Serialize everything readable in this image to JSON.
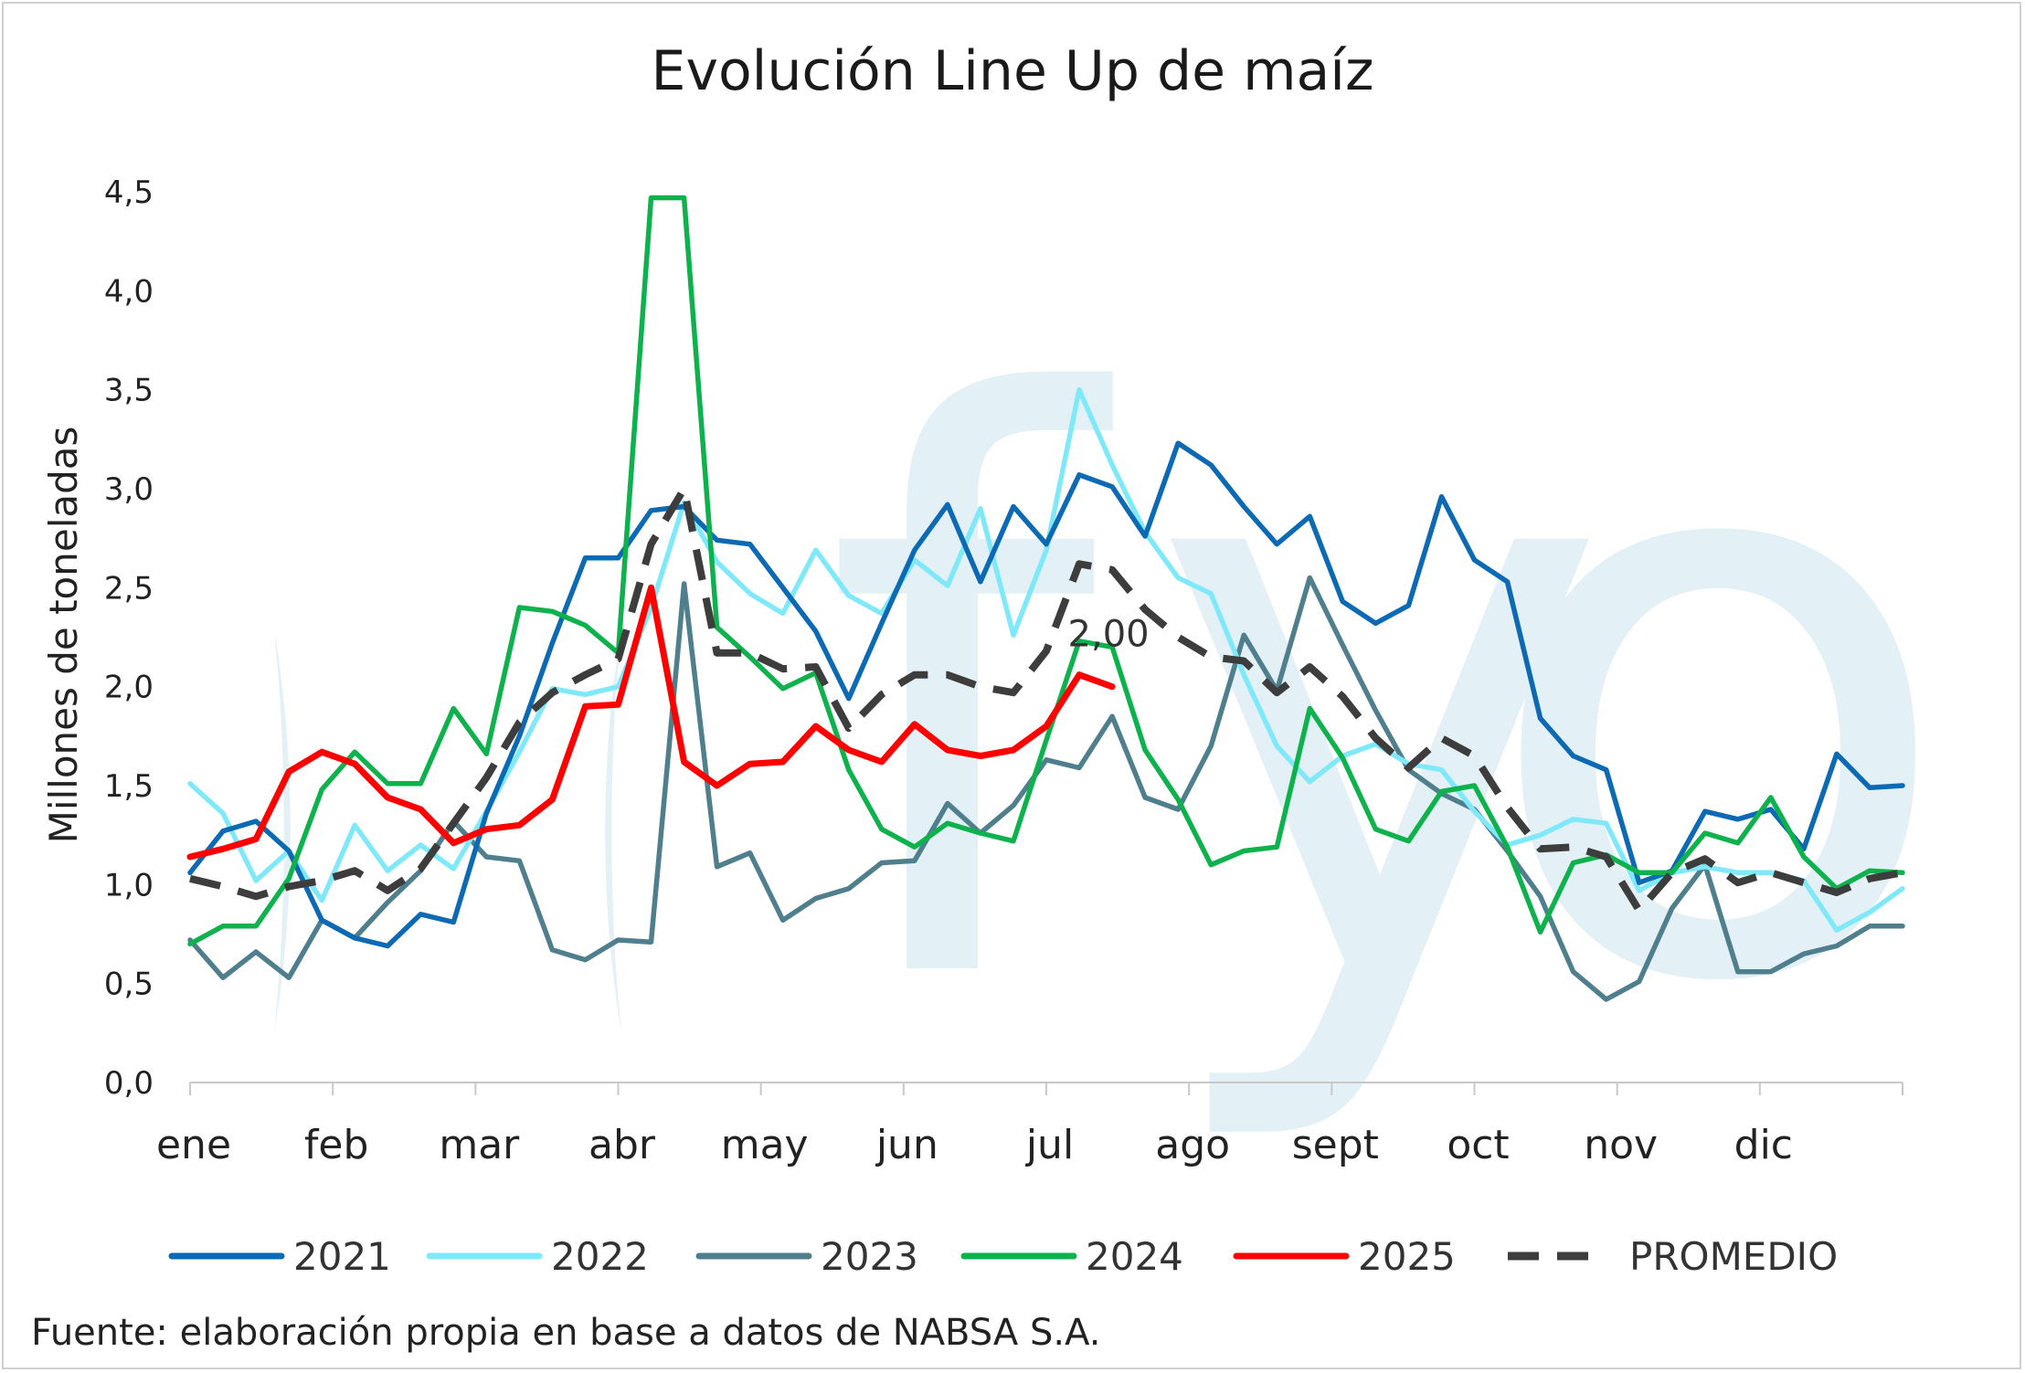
{
  "chart_data": {
    "type": "line",
    "title": "Evolución Line Up de maíz",
    "ylabel": "Millones de toneladas",
    "ylim": [
      0,
      4.5
    ],
    "yticks": [
      "0,0",
      "0,5",
      "1,0",
      "1,5",
      "2,0",
      "2,5",
      "3,0",
      "3,5",
      "4,0",
      "4,5"
    ],
    "xticks": [
      "ene",
      "feb",
      "mar",
      "abr",
      "may",
      "jun",
      "jul",
      "ago",
      "sept",
      "oct",
      "nov",
      "dic"
    ],
    "x_weeks": [
      1,
      2,
      3,
      4,
      5,
      6,
      7,
      8,
      9,
      10,
      11,
      12,
      13,
      14,
      15,
      16,
      17,
      18,
      19,
      20,
      21,
      22,
      23,
      24,
      25,
      26,
      27,
      28,
      29,
      30,
      31,
      32,
      33,
      34,
      35,
      36,
      37,
      38,
      39,
      40,
      41,
      42,
      43,
      44,
      45,
      46,
      47,
      48,
      49,
      50,
      51,
      52,
      53
    ],
    "grid": false,
    "legend_position": "bottom",
    "series": [
      {
        "name": "2021",
        "color": "#0b6ab3",
        "dash": false,
        "values": [
          1.06,
          1.27,
          1.32,
          1.17,
          0.82,
          0.73,
          0.69,
          0.85,
          0.81,
          1.36,
          1.75,
          2.22,
          2.65,
          2.65,
          2.89,
          2.91,
          2.74,
          2.72,
          2.5,
          2.28,
          1.94,
          2.32,
          2.69,
          2.92,
          2.53,
          2.91,
          2.72,
          3.07,
          3.01,
          2.76,
          3.23,
          3.12,
          2.91,
          2.72,
          2.86,
          2.43,
          2.32,
          2.41,
          2.96,
          2.64,
          2.53,
          1.84,
          1.65,
          1.58,
          1.01,
          1.07,
          1.37,
          1.33,
          1.38,
          1.18,
          1.66,
          1.49,
          1.5
        ]
      },
      {
        "name": "2022",
        "color": "#7fe9fa",
        "dash": false,
        "values": [
          1.51,
          1.36,
          1.02,
          1.17,
          0.92,
          1.3,
          1.07,
          1.2,
          1.08,
          1.37,
          1.67,
          1.99,
          1.96,
          2.0,
          2.4,
          2.93,
          2.63,
          2.47,
          2.37,
          2.69,
          2.46,
          2.37,
          2.64,
          2.51,
          2.9,
          2.26,
          2.69,
          3.5,
          3.12,
          2.78,
          2.55,
          2.47,
          2.06,
          1.7,
          1.52,
          1.65,
          1.71,
          1.61,
          1.58,
          1.37,
          1.2,
          1.25,
          1.33,
          1.31,
          0.97,
          1.06,
          1.09,
          1.06,
          1.06,
          1.02,
          0.77,
          0.86,
          0.98
        ]
      },
      {
        "name": "2023",
        "color": "#4f7f8c",
        "dash": false,
        "values": [
          0.72,
          0.53,
          0.66,
          0.53,
          0.82,
          0.73,
          0.91,
          1.07,
          1.32,
          1.14,
          1.12,
          0.67,
          0.62,
          0.72,
          0.71,
          2.52,
          1.09,
          1.16,
          0.82,
          0.93,
          0.98,
          1.11,
          1.12,
          1.41,
          1.26,
          1.4,
          1.63,
          1.59,
          1.85,
          1.44,
          1.38,
          1.7,
          2.26,
          1.98,
          2.55,
          2.21,
          1.88,
          1.58,
          1.46,
          1.38,
          1.17,
          0.94,
          0.56,
          0.42,
          0.51,
          0.88,
          1.1,
          0.56,
          0.56,
          0.65,
          0.69,
          0.79,
          0.79
        ]
      },
      {
        "name": "2024",
        "color": "#0eb24d",
        "dash": false,
        "values": [
          0.7,
          0.79,
          0.79,
          1.03,
          1.48,
          1.67,
          1.51,
          1.51,
          1.89,
          1.66,
          2.4,
          2.38,
          2.31,
          2.17,
          4.47,
          4.47,
          2.3,
          2.15,
          1.99,
          2.07,
          1.58,
          1.28,
          1.19,
          1.31,
          1.26,
          1.22,
          1.73,
          2.23,
          2.2,
          1.68,
          1.43,
          1.1,
          1.17,
          1.19,
          1.89,
          1.64,
          1.28,
          1.22,
          1.47,
          1.5,
          1.19,
          0.76,
          1.11,
          1.15,
          1.06,
          1.06,
          1.26,
          1.21,
          1.44,
          1.14,
          0.98,
          1.07,
          1.06
        ]
      },
      {
        "name": "2025",
        "color": "#ff0000",
        "dash": false,
        "values": [
          1.14,
          1.18,
          1.23,
          1.57,
          1.67,
          1.61,
          1.44,
          1.38,
          1.21,
          1.28,
          1.3,
          1.43,
          1.9,
          1.91,
          2.5,
          1.62,
          1.5,
          1.61,
          1.62,
          1.8,
          1.68,
          1.62,
          1.81,
          1.68,
          1.65,
          1.68,
          1.8,
          2.06,
          2.0
        ]
      },
      {
        "name": "PROMEDIO",
        "color": "#3d3d3d",
        "dash": true,
        "values": [
          1.03,
          0.99,
          0.94,
          0.99,
          1.02,
          1.07,
          0.97,
          1.08,
          1.31,
          1.54,
          1.82,
          1.97,
          2.06,
          2.14,
          2.72,
          3.0,
          2.17,
          2.17,
          2.09,
          2.1,
          1.79,
          1.96,
          2.06,
          2.06,
          2.0,
          1.97,
          2.18,
          2.62,
          2.59,
          2.39,
          2.25,
          2.15,
          2.13,
          1.97,
          2.1,
          1.95,
          1.74,
          1.59,
          1.74,
          1.65,
          1.39,
          1.18,
          1.19,
          1.14,
          0.87,
          1.06,
          1.13,
          1.01,
          1.06,
          1.01,
          0.96,
          1.03,
          1.06
        ]
      }
    ],
    "annotations": [
      {
        "text": "2,00",
        "series": "2025",
        "x_week": 29,
        "y": 2.0
      }
    ],
    "source": "Fuente: elaboración propia en base a datos de NABSA S.A.",
    "watermark": "fyo"
  }
}
